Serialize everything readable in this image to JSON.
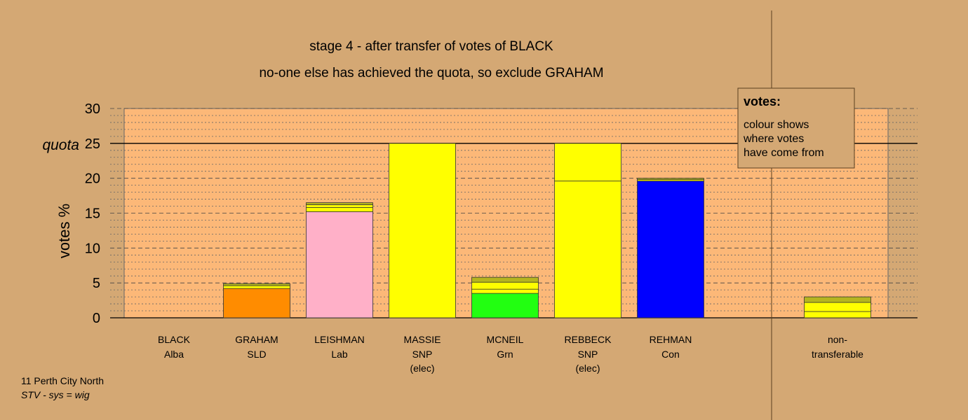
{
  "chart_data": {
    "type": "bar",
    "stacked": true,
    "title": "stage 4 - after transfer of votes of BLACK",
    "subtitle": "no-one else has achieved the quota, so exclude GRAHAM",
    "ylabel": "votes %",
    "ylim": [
      0,
      30
    ],
    "yticks": [
      0,
      5,
      10,
      15,
      20,
      25,
      30
    ],
    "quota": 25,
    "quota_label": "quota",
    "grid": true,
    "candidates": [
      {
        "name": "BLACK",
        "party": "Alba",
        "note": "",
        "segments": []
      },
      {
        "name": "GRAHAM",
        "party": "SLD",
        "note": "",
        "segments": [
          {
            "value": 4.2,
            "color": "#ff8c00"
          },
          {
            "value": 0.4,
            "color": "#ffff00"
          },
          {
            "value": 0.3,
            "color": "#b5b520"
          }
        ]
      },
      {
        "name": "LEISHMAN",
        "party": "Lab",
        "note": "",
        "segments": [
          {
            "value": 15.2,
            "color": "#ffb0c8"
          },
          {
            "value": 0.6,
            "color": "#ffff00"
          },
          {
            "value": 0.4,
            "color": "#ffff00"
          },
          {
            "value": 0.3,
            "color": "#b5b520"
          }
        ]
      },
      {
        "name": "MASSIE",
        "party": "SNP",
        "note": "(elec)",
        "segments": [
          {
            "value": 25.0,
            "color": "#ffff00"
          }
        ]
      },
      {
        "name": "MCNEIL",
        "party": "Grn",
        "note": "",
        "segments": [
          {
            "value": 3.5,
            "color": "#22ff11"
          },
          {
            "value": 0.6,
            "color": "#ffff00"
          },
          {
            "value": 1.0,
            "color": "#ffff00"
          },
          {
            "value": 0.7,
            "color": "#b5b520"
          }
        ]
      },
      {
        "name": "REBBECK",
        "party": "SNP",
        "note": "(elec)",
        "segments": [
          {
            "value": 19.6,
            "color": "#ffff00"
          },
          {
            "value": 5.4,
            "color": "#ffff00"
          }
        ]
      },
      {
        "name": "REHMAN",
        "party": "Con",
        "note": "",
        "segments": [
          {
            "value": 19.6,
            "color": "#0000ff"
          },
          {
            "value": 0.2,
            "color": "#ffff00"
          },
          {
            "value": 0.2,
            "color": "#b5b520"
          }
        ]
      }
    ],
    "nontransferable": {
      "name": "non-",
      "name2": "transferable",
      "segments": [
        {
          "value": 0.9,
          "color": "#ffff00"
        },
        {
          "value": 1.3,
          "color": "#ffff00"
        },
        {
          "value": 0.8,
          "color": "#b5b520"
        }
      ]
    }
  },
  "legend": {
    "title": "votes:",
    "lines": [
      "colour shows",
      "where votes",
      "have come from"
    ]
  },
  "footer": {
    "line1": "11 Perth City North",
    "line2": "STV - sys = wig"
  }
}
